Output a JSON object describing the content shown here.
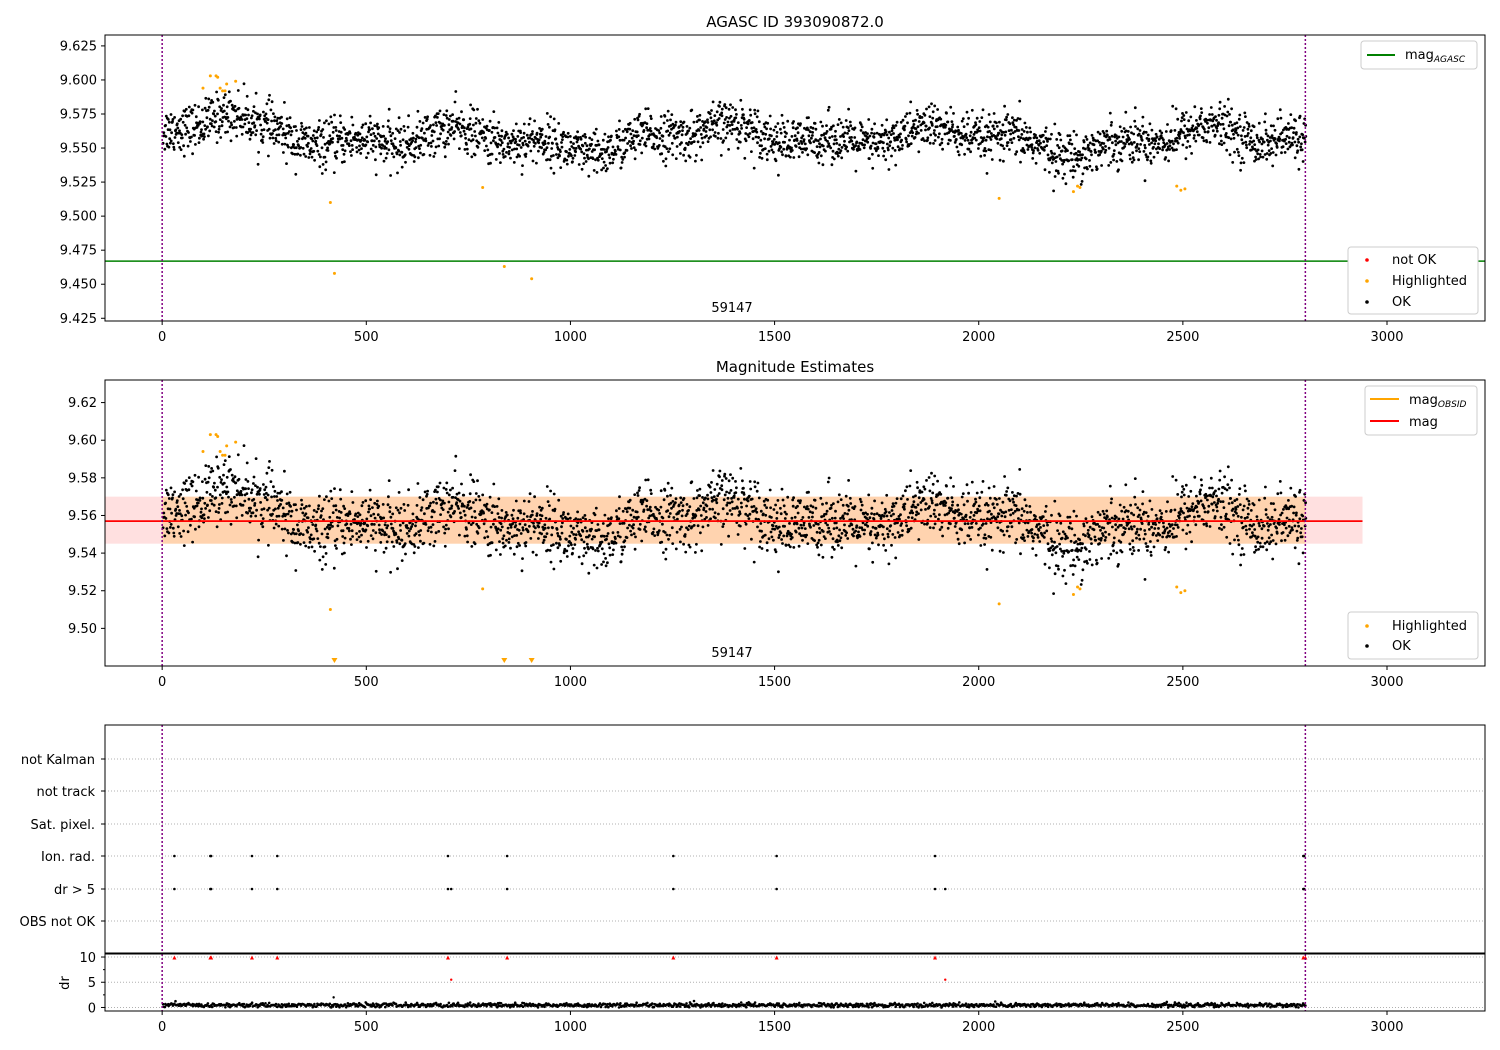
{
  "chart_data": [
    {
      "type": "scatter",
      "title": "AGASC ID 393090872.0",
      "xlim": [
        -140,
        3240
      ],
      "ylim": [
        9.423,
        9.633
      ],
      "xticks": [
        0,
        500,
        1000,
        1500,
        2000,
        2500,
        3000
      ],
      "yticks": [
        9.425,
        9.45,
        9.475,
        9.5,
        9.525,
        9.55,
        9.575,
        9.6,
        9.625
      ],
      "vlines": [
        0,
        2800
      ],
      "hlines": [
        {
          "name": "mag_AGASC",
          "value": 9.467,
          "color": "#008000"
        }
      ],
      "annotation": {
        "text": "59147",
        "x": 1400
      },
      "legend_top": {
        "placement": "top-right",
        "entries": [
          {
            "label": "mag",
            "sub": "AGASC",
            "color": "#008000",
            "marker": "line"
          }
        ]
      },
      "legend_bottom": {
        "placement": "bottom-right",
        "entries": [
          {
            "label": "not OK",
            "color": "#ff0000",
            "marker": "dot"
          },
          {
            "label": "Highlighted",
            "color": "#ffa500",
            "marker": "dot"
          },
          {
            "label": "OK",
            "color": "#000000",
            "marker": "dot"
          }
        ]
      },
      "highlighted_points": [
        [
          100,
          9.594
        ],
        [
          118,
          9.603
        ],
        [
          132,
          9.603
        ],
        [
          136,
          9.602
        ],
        [
          142,
          9.594
        ],
        [
          148,
          9.592
        ],
        [
          154,
          9.592
        ],
        [
          158,
          9.597
        ],
        [
          180,
          9.599
        ],
        [
          412,
          9.51
        ],
        [
          422,
          9.458
        ],
        [
          785,
          9.521
        ],
        [
          838,
          9.463
        ],
        [
          905,
          9.454
        ],
        [
          2050,
          9.513
        ],
        [
          2232,
          9.518
        ],
        [
          2242,
          9.522
        ],
        [
          2248,
          9.521
        ],
        [
          2485,
          9.522
        ],
        [
          2495,
          9.519
        ],
        [
          2505,
          9.52
        ]
      ]
    },
    {
      "type": "scatter",
      "title": "Magnitude Estimates",
      "xlim": [
        -140,
        3240
      ],
      "ylim": [
        9.48,
        9.632
      ],
      "xticks": [
        0,
        500,
        1000,
        1500,
        2000,
        2500,
        3000
      ],
      "yticks": [
        9.5,
        9.52,
        9.54,
        9.56,
        9.58,
        9.6,
        9.62
      ],
      "vlines": [
        0,
        2800
      ],
      "mag_obsid": {
        "value": 9.557,
        "band": [
          9.545,
          9.57
        ],
        "color": "#ffa500"
      },
      "mag": {
        "value": 9.557,
        "band": [
          9.545,
          9.57
        ],
        "x_range": [
          -140,
          2940
        ],
        "color": "#ff0000"
      },
      "annotation": {
        "text": "59147",
        "x": 1400
      },
      "legend_top": {
        "placement": "top-right",
        "entries": [
          {
            "label": "mag",
            "sub": "OBSID",
            "color": "#ffa500",
            "marker": "line"
          },
          {
            "label": "mag",
            "sub": "",
            "color": "#ff0000",
            "marker": "line"
          }
        ]
      },
      "legend_bottom": {
        "placement": "bottom-right",
        "entries": [
          {
            "label": "Highlighted",
            "color": "#ffa500",
            "marker": "dot"
          },
          {
            "label": "OK",
            "color": "#000000",
            "marker": "dot"
          }
        ]
      },
      "highlighted_points": [
        [
          100,
          9.594
        ],
        [
          118,
          9.603
        ],
        [
          132,
          9.603
        ],
        [
          136,
          9.602
        ],
        [
          142,
          9.594
        ],
        [
          148,
          9.592
        ],
        [
          154,
          9.592
        ],
        [
          158,
          9.597
        ],
        [
          180,
          9.599
        ],
        [
          412,
          9.51
        ],
        [
          785,
          9.521
        ],
        [
          2050,
          9.513
        ],
        [
          2232,
          9.518
        ],
        [
          2242,
          9.522
        ],
        [
          2248,
          9.521
        ],
        [
          2485,
          9.522
        ],
        [
          2495,
          9.519
        ],
        [
          2505,
          9.52
        ]
      ],
      "below_range_markers": [
        422,
        838,
        905
      ]
    },
    {
      "type": "scatter",
      "categories": [
        "not Kalman",
        "not track",
        "Sat. pixel.",
        "Ion. rad.",
        "dr > 5",
        "OBS not OK"
      ],
      "xlim": [
        -140,
        3240
      ],
      "vlines": [
        0,
        2800
      ],
      "flag_points": {
        "Ion. rad.": [
          30,
          118,
          120,
          220,
          282,
          700,
          845,
          1252,
          1505,
          1893,
          2795,
          2797
        ],
        "dr > 5": [
          30,
          118,
          120,
          220,
          282,
          700,
          708,
          845,
          1252,
          1505,
          1893,
          1918,
          2795,
          2797
        ]
      }
    },
    {
      "type": "scatter",
      "ylabel": "dr",
      "xlim": [
        -140,
        3240
      ],
      "ylim": [
        -0.7,
        10.6
      ],
      "xticks": [
        0,
        500,
        1000,
        1500,
        2000,
        2500,
        3000
      ],
      "yticks": [
        0,
        5,
        10
      ],
      "vlines": [
        0,
        2800
      ],
      "clipped_markers": [
        30,
        118,
        120,
        220,
        282,
        700,
        845,
        1252,
        1505,
        1893,
        2795,
        2800
      ],
      "large_points": [
        [
          708,
          5.5
        ],
        [
          1918,
          5.5
        ],
        [
          420,
          2.0
        ]
      ]
    }
  ]
}
